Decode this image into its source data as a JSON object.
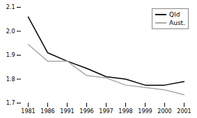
{
  "chart_data": {
    "type": "line",
    "categories": [
      "1981",
      "1986",
      "1991",
      "1996",
      "1997",
      "1998",
      "1999",
      "2000",
      "2001"
    ],
    "series": [
      {
        "name": "Qld",
        "color": "#000000",
        "values": [
          2.06,
          1.91,
          1.875,
          1.845,
          1.81,
          1.8,
          1.775,
          1.775,
          1.79
        ]
      },
      {
        "name": "Aust.",
        "color": "#aaaaaa",
        "values": [
          1.945,
          1.875,
          1.875,
          1.815,
          1.805,
          1.775,
          1.765,
          1.755,
          1.735
        ]
      }
    ],
    "ylim": [
      1.7,
      2.1
    ],
    "yticks": [
      1.7,
      1.8,
      1.9,
      {
        "value": 2.0,
        "label": "2.0"
      },
      2.1
    ],
    "grid": false,
    "legend": "upper right"
  }
}
